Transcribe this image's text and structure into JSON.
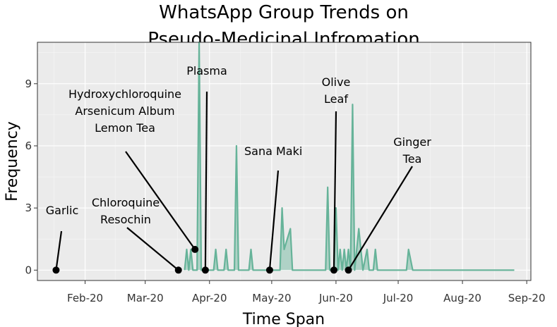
{
  "chart_data": {
    "type": "area",
    "title": [
      "WhatsApp Group Trends on",
      "Pseudo-Medicinal Infromation"
    ],
    "xlabel": "Time Span",
    "ylabel": "Frequency",
    "ylim": [
      -0.5,
      11
    ],
    "yticks": [
      0,
      3,
      6,
      9
    ],
    "xlim": [
      "2020-01-09",
      "2020-09-03"
    ],
    "xticks": [
      {
        "date": "2020-02-01",
        "label": "Feb-20"
      },
      {
        "date": "2020-03-01",
        "label": "Mar-20"
      },
      {
        "date": "2020-04-01",
        "label": "Apr-20"
      },
      {
        "date": "2020-05-01",
        "label": "May-20"
      },
      {
        "date": "2020-06-01",
        "label": "Jun-20"
      },
      {
        "date": "2020-07-01",
        "label": "Jul-20"
      },
      {
        "date": "2020-08-01",
        "label": "Aug-20"
      },
      {
        "date": "2020-09-01",
        "label": "Sep-20"
      }
    ],
    "grid": true,
    "series": [
      {
        "name": "Frequency",
        "color": "#66b399",
        "points": [
          [
            "2020-03-20",
            0
          ],
          [
            "2020-03-21",
            1
          ],
          [
            "2020-03-22",
            0
          ],
          [
            "2020-03-23",
            1
          ],
          [
            "2020-03-24",
            0
          ],
          [
            "2020-03-26",
            0
          ],
          [
            "2020-03-27",
            11
          ],
          [
            "2020-03-28",
            0
          ],
          [
            "2020-04-03",
            0
          ],
          [
            "2020-04-04",
            1
          ],
          [
            "2020-04-05",
            0
          ],
          [
            "2020-04-08",
            0
          ],
          [
            "2020-04-09",
            1
          ],
          [
            "2020-04-10",
            0
          ],
          [
            "2020-04-13",
            0
          ],
          [
            "2020-04-14",
            6
          ],
          [
            "2020-04-15",
            0
          ],
          [
            "2020-04-20",
            0
          ],
          [
            "2020-04-21",
            1
          ],
          [
            "2020-04-22",
            0
          ],
          [
            "2020-05-05",
            0
          ],
          [
            "2020-05-06",
            3
          ],
          [
            "2020-05-07",
            1
          ],
          [
            "2020-05-10",
            2
          ],
          [
            "2020-05-11",
            0
          ],
          [
            "2020-05-27",
            0
          ],
          [
            "2020-05-28",
            4
          ],
          [
            "2020-05-29",
            0
          ],
          [
            "2020-05-31",
            0
          ],
          [
            "2020-06-01",
            3
          ],
          [
            "2020-06-02",
            0
          ],
          [
            "2020-06-03",
            1
          ],
          [
            "2020-06-04",
            0
          ],
          [
            "2020-06-05",
            1
          ],
          [
            "2020-06-06",
            0
          ],
          [
            "2020-06-07",
            1
          ],
          [
            "2020-06-08",
            0
          ],
          [
            "2020-06-09",
            8
          ],
          [
            "2020-06-10",
            0
          ],
          [
            "2020-06-12",
            2
          ],
          [
            "2020-06-14",
            0
          ],
          [
            "2020-06-16",
            1
          ],
          [
            "2020-06-17",
            0
          ],
          [
            "2020-06-19",
            0
          ],
          [
            "2020-06-20",
            1
          ],
          [
            "2020-06-21",
            0
          ],
          [
            "2020-07-05",
            0
          ],
          [
            "2020-07-06",
            1
          ],
          [
            "2020-07-08",
            0
          ],
          [
            "2020-08-26",
            0
          ]
        ]
      }
    ],
    "annotations": [
      {
        "lines": [
          "Garlic"
        ],
        "date": "2020-01-18",
        "value": 0
      },
      {
        "lines": [
          "Chloroquine",
          "Resochin"
        ],
        "date": "2020-03-17",
        "value": 0
      },
      {
        "lines": [
          "Hydroxychloroquine",
          "Arsenicum Album",
          "Lemon Tea"
        ],
        "date": "2020-03-25",
        "value": 1
      },
      {
        "lines": [
          "Plasma"
        ],
        "date": "2020-03-30",
        "value": 0
      },
      {
        "lines": [
          "Sana Maki"
        ],
        "date": "2020-04-30",
        "value": 0
      },
      {
        "lines": [
          "Olive",
          "Leaf"
        ],
        "date": "2020-05-31",
        "value": 0
      },
      {
        "lines": [
          "Ginger",
          "Tea"
        ],
        "date": "2020-06-07",
        "value": 0
      }
    ]
  }
}
